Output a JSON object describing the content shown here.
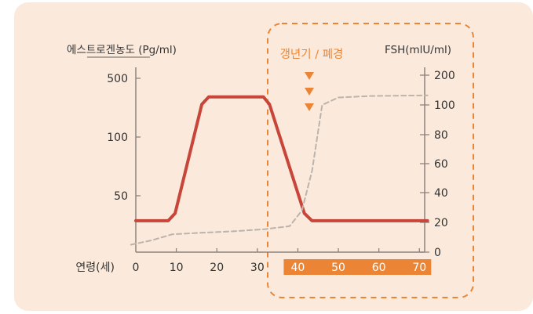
{
  "chart_data": {
    "type": "line",
    "left_axis": {
      "label": "에스트로겐농도 (Pg/ml)",
      "ticks": [
        {
          "label": "500"
        },
        {
          "label": "100"
        },
        {
          "label": "50"
        }
      ]
    },
    "right_axis": {
      "label": "FSH(mlU/ml)",
      "ticks": [
        0,
        20,
        40,
        60,
        80,
        100,
        200
      ],
      "range": [
        0,
        200
      ]
    },
    "x_axis": {
      "label": "연령(세)",
      "ticks": [
        0,
        10,
        20,
        30,
        40,
        50,
        60,
        70
      ],
      "range": [
        0,
        72
      ],
      "highlighted_ticks": [
        40,
        50,
        60,
        70
      ]
    },
    "annotation": {
      "text": "갱년기 / 폐경",
      "marker": "▼",
      "marker_count": 3,
      "region_start_age": 33
    },
    "series": [
      {
        "name": "",
        "axis": "left",
        "style": "solid",
        "color": "#c8453a",
        "points": [
          {
            "age": 0,
            "level": 0.17
          },
          {
            "age": 8,
            "level": 0.17
          },
          {
            "age": 9.7,
            "level": 0.21
          },
          {
            "age": 16.3,
            "level": 0.8
          },
          {
            "age": 18,
            "level": 0.84
          },
          {
            "age": 31.5,
            "level": 0.84
          },
          {
            "age": 33,
            "level": 0.8
          },
          {
            "age": 41.6,
            "level": 0.21
          },
          {
            "age": 43.5,
            "level": 0.17
          },
          {
            "age": 72,
            "level": 0.17
          }
        ]
      },
      {
        "name": "",
        "axis": "right",
        "style": "dashed",
        "color": "#bbb3ac",
        "points": [
          {
            "age": -1.2,
            "fsh": 5
          },
          {
            "age": 4,
            "fsh": 8
          },
          {
            "age": 9,
            "fsh": 12
          },
          {
            "age": 16,
            "fsh": 13
          },
          {
            "age": 24,
            "fsh": 14
          },
          {
            "age": 32,
            "fsh": 15.5
          },
          {
            "age": 38,
            "fsh": 17.5
          },
          {
            "age": 41,
            "fsh": 28
          },
          {
            "age": 43.5,
            "fsh": 55
          },
          {
            "age": 46,
            "fsh": 100
          },
          {
            "age": 50,
            "fsh": 125
          },
          {
            "age": 58,
            "fsh": 130
          },
          {
            "age": 72,
            "fsh": 132
          }
        ]
      }
    ],
    "colors": {
      "panel_bg": "#fbeadb",
      "accent_orange": "#eb8535",
      "estrogen_line": "#c8453a",
      "fsh_line": "#bbb3ac",
      "axis": "#8a8480",
      "text": "#333333"
    }
  }
}
